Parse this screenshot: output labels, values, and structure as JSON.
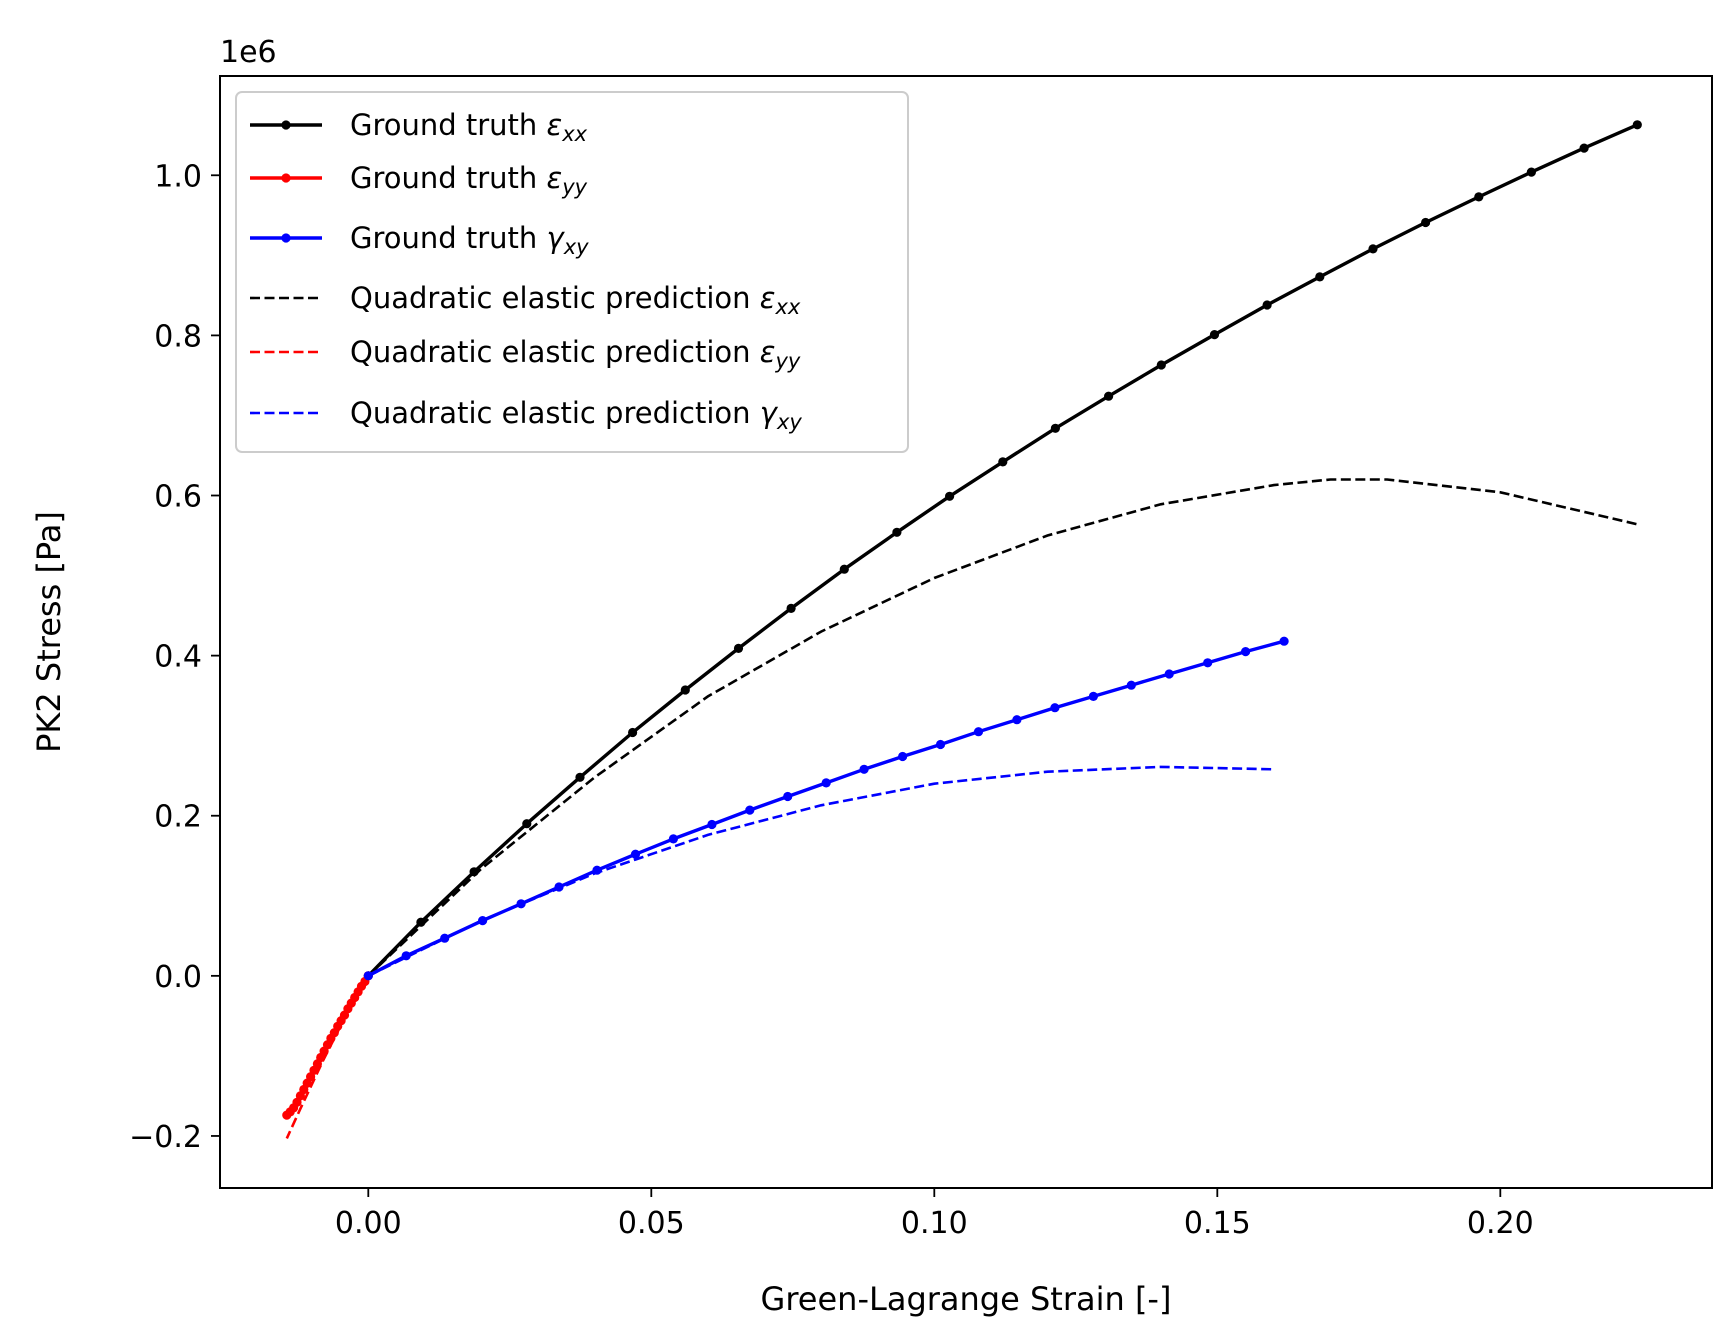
{
  "chart_data": {
    "type": "line",
    "xlabel": "Green-Lagrange Strain [-]",
    "ylabel": "PK2 Stress [Pa]",
    "y_offset_text": "1e6",
    "xlim": [
      -0.0262,
      0.2374
    ],
    "ylim": [
      -0.265,
      1.124
    ],
    "x_scale_note": "y values in units of 1e6 Pa",
    "x_ticks": [
      0.0,
      0.05,
      0.1,
      0.15,
      0.2
    ],
    "x_tick_labels": [
      "0.00",
      "0.05",
      "0.10",
      "0.15",
      "0.20"
    ],
    "y_ticks": [
      -0.2,
      0.0,
      0.2,
      0.4,
      0.6,
      0.8,
      1.0
    ],
    "y_tick_labels": [
      "−0.2",
      "0.0",
      "0.2",
      "0.4",
      "0.6",
      "0.8",
      "1.0"
    ],
    "grid": false,
    "legend_position": "top-left",
    "series": [
      {
        "name": "Ground truth εxx",
        "legend_main": "Ground truth ",
        "legend_symbol": "ε",
        "legend_sub": "xx",
        "color": "#000000",
        "style": "solid-markers",
        "x": [
          0.0,
          0.0093,
          0.0187,
          0.028,
          0.0374,
          0.0467,
          0.056,
          0.0654,
          0.0747,
          0.0841,
          0.0934,
          0.1027,
          0.1121,
          0.1214,
          0.1308,
          0.1401,
          0.1495,
          0.1588,
          0.1681,
          0.1775,
          0.1868,
          0.1962,
          0.2055,
          0.2148,
          0.2242
        ],
        "y": [
          0.0,
          0.067,
          0.13,
          0.19,
          0.248,
          0.304,
          0.357,
          0.409,
          0.459,
          0.508,
          0.554,
          0.599,
          0.642,
          0.684,
          0.724,
          0.763,
          0.801,
          0.838,
          0.873,
          0.908,
          0.941,
          0.973,
          1.004,
          1.034,
          1.063
        ]
      },
      {
        "name": "Ground truth εyy",
        "legend_main": "Ground truth ",
        "legend_symbol": "ε",
        "legend_sub": "yy",
        "color": "#ff0000",
        "style": "solid-markers",
        "x": [
          0.0,
          -0.0006,
          -0.0012,
          -0.0018,
          -0.0024,
          -0.003,
          -0.0036,
          -0.0042,
          -0.0048,
          -0.0054,
          -0.006,
          -0.0066,
          -0.0072,
          -0.0078,
          -0.0084,
          -0.009,
          -0.0096,
          -0.0102,
          -0.0108,
          -0.0114,
          -0.012,
          -0.0126,
          -0.0132,
          -0.0138,
          -0.0144
        ],
        "y": [
          0.0,
          -0.007,
          -0.013,
          -0.02,
          -0.027,
          -0.034,
          -0.041,
          -0.049,
          -0.056,
          -0.063,
          -0.071,
          -0.078,
          -0.086,
          -0.094,
          -0.102,
          -0.11,
          -0.118,
          -0.126,
          -0.134,
          -0.142,
          -0.15,
          -0.158,
          -0.165,
          -0.17,
          -0.174
        ]
      },
      {
        "name": "Ground truth γxy",
        "legend_main": "Ground truth ",
        "legend_symbol": "γ",
        "legend_sub": "xy",
        "color": "#0000ff",
        "style": "solid-markers",
        "x": [
          0.0,
          0.0067,
          0.0135,
          0.0202,
          0.027,
          0.0337,
          0.0404,
          0.0472,
          0.0539,
          0.0607,
          0.0674,
          0.0741,
          0.0809,
          0.0876,
          0.0944,
          0.1011,
          0.1078,
          0.1146,
          0.1213,
          0.1281,
          0.1348,
          0.1415,
          0.1483,
          0.155,
          0.1618
        ],
        "y": [
          0.0,
          0.025,
          0.047,
          0.069,
          0.09,
          0.111,
          0.132,
          0.152,
          0.171,
          0.189,
          0.207,
          0.224,
          0.241,
          0.258,
          0.274,
          0.289,
          0.305,
          0.32,
          0.335,
          0.349,
          0.363,
          0.377,
          0.391,
          0.405,
          0.418
        ]
      },
      {
        "name": "Quadratic elastic prediction εxx",
        "legend_main": "Quadratic elastic prediction ",
        "legend_symbol": "ε",
        "legend_sub": "xx",
        "color": "#000000",
        "style": "dashed",
        "x": [
          0.0,
          0.02,
          0.04,
          0.06,
          0.08,
          0.1,
          0.12,
          0.14,
          0.16,
          0.17,
          0.18,
          0.2,
          0.2242
        ],
        "y": [
          0.0,
          0.134,
          0.248,
          0.349,
          0.43,
          0.497,
          0.55,
          0.589,
          0.613,
          0.62,
          0.62,
          0.604,
          0.564
        ]
      },
      {
        "name": "Quadratic elastic prediction εyy",
        "legend_main": "Quadratic elastic prediction ",
        "legend_symbol": "ε",
        "legend_sub": "yy",
        "color": "#ff0000",
        "style": "dashed",
        "x": [
          0.0,
          -0.002,
          -0.004,
          -0.006,
          -0.008,
          -0.01,
          -0.012,
          -0.0144
        ],
        "y": [
          0.0,
          -0.024,
          -0.05,
          -0.078,
          -0.106,
          -0.136,
          -0.166,
          -0.203
        ]
      },
      {
        "name": "Quadratic elastic prediction γxy",
        "legend_main": "Quadratic elastic prediction ",
        "legend_symbol": "γ",
        "legend_sub": "xy",
        "color": "#0000ff",
        "style": "dashed",
        "x": [
          0.0,
          0.02,
          0.04,
          0.06,
          0.08,
          0.1,
          0.12,
          0.14,
          0.16
        ],
        "y": [
          0.0,
          0.069,
          0.128,
          0.176,
          0.213,
          0.24,
          0.255,
          0.261,
          0.258
        ]
      }
    ]
  }
}
